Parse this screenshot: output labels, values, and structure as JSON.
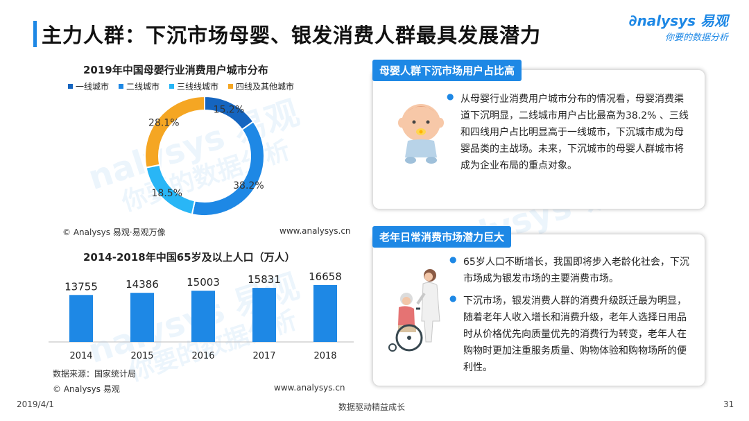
{
  "page": {
    "title": "主力人群：下沉市场母婴、银发消费人群最具发展潜力",
    "logo_main": "nalysys 易观",
    "logo_sub": "你要的数据分析",
    "watermark_1": "nalysys 易观",
    "watermark_2": "你要的数据分析",
    "footer_date": "2019/4/1",
    "footer_slogan": "数据驱动精益成长",
    "footer_page": "31"
  },
  "donut": {
    "copyright": "© Analysys 易观·易观万像",
    "website": "www.analysys.cn"
  },
  "bars": {
    "copyright": "© Analysys 易观",
    "website": "www.analysys.cn",
    "source": "数据来源：国家统计局"
  },
  "cards": {
    "baby": {
      "tag": "母婴人群下沉市场用户占比高",
      "text": "从母婴行业消费用户城市分布的情况看，母婴消费渠道下沉明显，二线城市用户占比最高为38.2% 、三线和四线用户占比明显高于一线城市，下沉城市成为母婴品类的主战场。未来，下沉城市的母婴人群城市将成为企业布局的重点对象。"
    },
    "elder": {
      "tag": "老年日常消费市场潜力巨大",
      "text_1": "65岁人口不断增长，我国即将步入老龄化社会，下沉市场成为银发市场的主要消费市场。",
      "text_2": "下沉市场，银发消费人群的消费升级跃迁最为明显，随着老年人收入增长和消费升级，老年人选择日用品时从价格优先向质量优先的消费行为转变，老年人在购物时更加注重服务质量、购物体验和购物场所的便利性。"
    }
  },
  "chart_data": [
    {
      "type": "pie",
      "title": "2019年中国母婴行业消费用户城市分布",
      "categories": [
        "一线城市",
        "二线城市",
        "三线线城市",
        "四线及其他城市"
      ],
      "values": [
        15.2,
        38.2,
        18.5,
        28.1
      ],
      "labels": [
        "15.2%",
        "38.2%",
        "18.5%",
        "28.1%"
      ],
      "colors": [
        "#1565c0",
        "#1e88e5",
        "#29b6f6",
        "#f5a623"
      ],
      "legend": "top"
    },
    {
      "type": "bar",
      "title": "2014-2018年中国65岁及以上人口（万人）",
      "categories": [
        "2014",
        "2015",
        "2016",
        "2017",
        "2018"
      ],
      "values": [
        13755,
        14386,
        15003,
        15831,
        16658
      ],
      "color": "#1e88e5"
    }
  ]
}
